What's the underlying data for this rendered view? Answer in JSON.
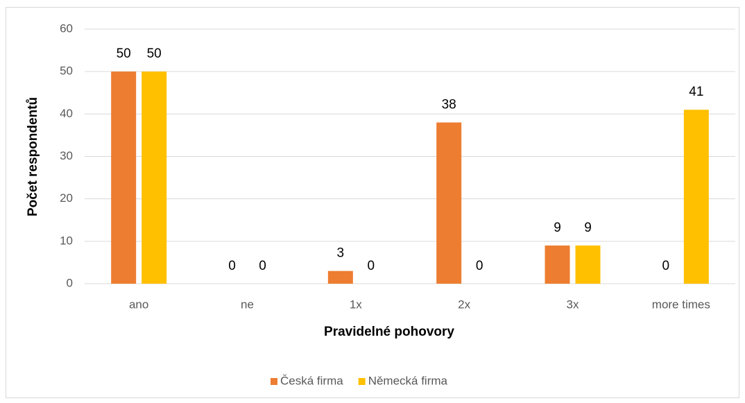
{
  "chart_data": {
    "type": "bar",
    "x_label": "Pravidelné pohovory",
    "y_label": "Počet respondentů",
    "categories": [
      "ano",
      "ne",
      "1x",
      "2x",
      "3x",
      "more times"
    ],
    "series": [
      {
        "name": "Česká firma",
        "color": "#ED7D31",
        "values": [
          50,
          0,
          3,
          38,
          9,
          0
        ]
      },
      {
        "name": "Německá firma",
        "color": "#FFC000",
        "values": [
          50,
          0,
          0,
          0,
          9,
          41
        ]
      }
    ],
    "ylim": [
      0,
      60
    ],
    "yticks": [
      0,
      10,
      20,
      30,
      40,
      50,
      60
    ],
    "grid": true,
    "legend": "bottom"
  }
}
